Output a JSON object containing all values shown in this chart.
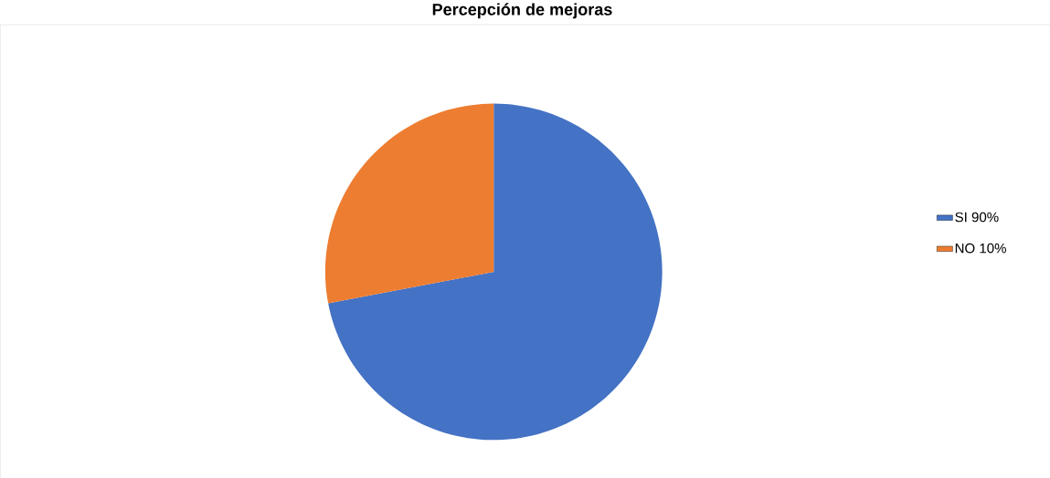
{
  "chart_data": {
    "type": "pie",
    "title": "Percepción de mejoras",
    "categories": [
      "SI 90%",
      "NO 10%"
    ],
    "values": [
      72,
      28
    ],
    "colors": [
      "#4472c4",
      "#ed7d31"
    ],
    "legend": "right"
  }
}
